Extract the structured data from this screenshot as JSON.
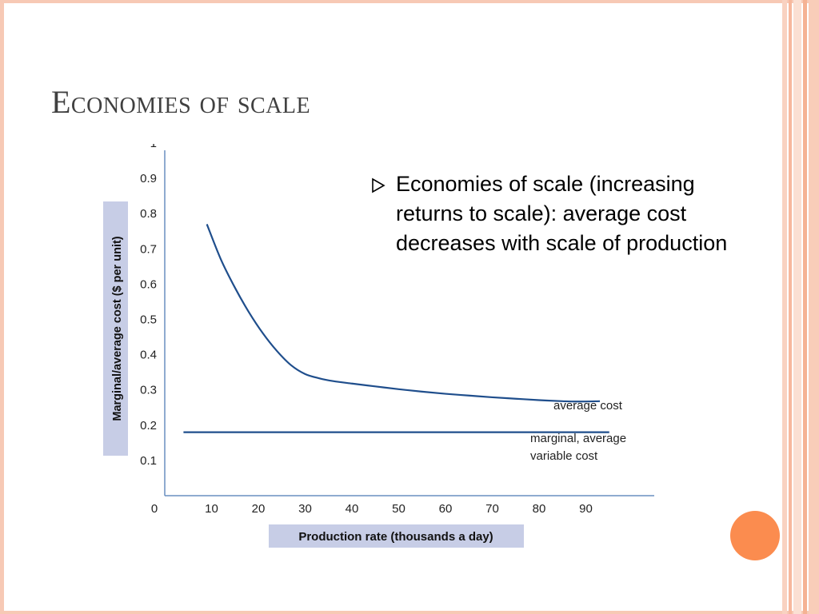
{
  "slide": {
    "title": "Economies of scale",
    "bullet": "Economies of scale (increasing returns to scale): average cost decreases with scale of production"
  },
  "colors": {
    "accent_orange": "#fb8c4f",
    "frame_peach": "#f7c9b5",
    "curve_blue": "#1f4e8c",
    "label_box": "#c7cde6"
  },
  "chart_data": {
    "type": "line",
    "title": "",
    "xlabel": "Production rate (thousands a day)",
    "ylabel": "Marginal/average cost ($ per unit)",
    "xlim": [
      0,
      105
    ],
    "ylim": [
      0,
      1
    ],
    "x_ticks": [
      "0",
      "10",
      "20",
      "30",
      "40",
      "50",
      "60",
      "70",
      "80",
      "90"
    ],
    "y_ticks": [
      "0.1",
      "0.2",
      "0.3",
      "0.4",
      "0.5",
      "0.6",
      "0.7",
      "0.8",
      "0.9",
      "1"
    ],
    "grid": false,
    "series": [
      {
        "name": "average cost",
        "x": [
          9,
          12,
          15,
          18,
          21,
          24,
          27,
          30,
          33,
          36,
          40,
          45,
          50,
          55,
          60,
          65,
          70,
          75,
          80,
          85,
          88,
          93
        ],
        "y": [
          0.77,
          0.67,
          0.59,
          0.52,
          0.46,
          0.41,
          0.37,
          0.345,
          0.333,
          0.325,
          0.318,
          0.31,
          0.302,
          0.295,
          0.289,
          0.284,
          0.279,
          0.275,
          0.271,
          0.268,
          0.267,
          0.268
        ]
      },
      {
        "name": "marginal, average variable cost",
        "x": [
          4,
          95
        ],
        "y": [
          0.18,
          0.18
        ]
      }
    ],
    "annotations": [
      {
        "text": "average cost",
        "line2": ""
      },
      {
        "text": "marginal, average",
        "line2": "variable cost"
      }
    ]
  }
}
